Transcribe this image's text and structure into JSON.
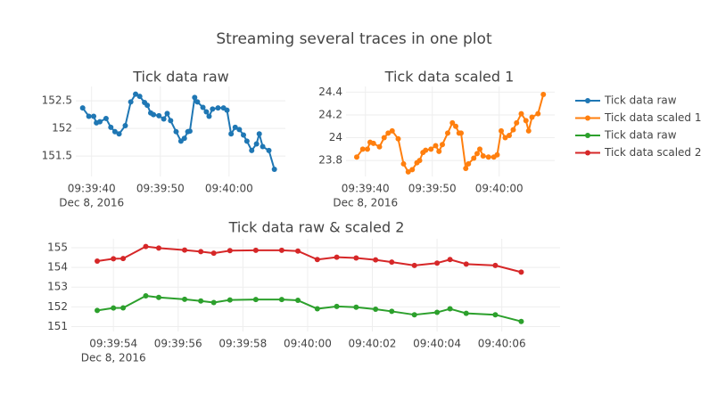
{
  "title": "Streaming several traces in one plot",
  "chart_data": [
    {
      "type": "line",
      "title": "Tick data raw",
      "x": [
        "2016-12-08T09:39:38.7",
        "2016-12-08T09:39:39.6",
        "2016-12-08T09:39:40.3",
        "2016-12-08T09:39:40.7",
        "2016-12-08T09:39:41.2",
        "2016-12-08T09:39:42.1",
        "2016-12-08T09:39:42.8",
        "2016-12-08T09:39:43.4",
        "2016-12-08T09:39:44.0",
        "2016-12-08T09:39:44.9",
        "2016-12-08T09:39:45.7",
        "2016-12-08T09:39:46.4",
        "2016-12-08T09:39:47.0",
        "2016-12-08T09:39:47.7",
        "2016-12-08T09:39:48.1",
        "2016-12-08T09:39:48.6",
        "2016-12-08T09:39:49.0",
        "2016-12-08T09:39:49.8",
        "2016-12-08T09:39:50.5",
        "2016-12-08T09:39:51.0",
        "2016-12-08T09:39:51.5",
        "2016-12-08T09:39:52.3",
        "2016-12-08T09:39:53.0",
        "2016-12-08T09:39:53.5",
        "2016-12-08T09:39:54.0",
        "2016-12-08T09:39:54.3",
        "2016-12-08T09:39:55.0",
        "2016-12-08T09:39:55.4",
        "2016-12-08T09:39:56.2",
        "2016-12-08T09:39:56.7",
        "2016-12-08T09:39:57.1",
        "2016-12-08T09:39:57.6",
        "2016-12-08T09:39:58.4",
        "2016-12-08T09:39:59.2",
        "2016-12-08T09:39:59.7",
        "2016-12-08T09:40:00.3",
        "2016-12-08T09:40:00.9",
        "2016-12-08T09:40:01.5",
        "2016-12-08T09:40:02.1",
        "2016-12-08T09:40:02.6",
        "2016-12-08T09:40:03.3",
        "2016-12-08T09:40:04.0",
        "2016-12-08T09:40:04.4",
        "2016-12-08T09:40:04.9",
        "2016-12-08T09:40:05.8",
        "2016-12-08T09:40:06.6"
      ],
      "series": [
        {
          "name": "Tick data raw",
          "color": "#1f77b4",
          "values": [
            152.37,
            152.22,
            152.22,
            152.1,
            152.12,
            152.18,
            152.02,
            151.94,
            151.9,
            152.05,
            152.48,
            152.62,
            152.58,
            152.47,
            152.42,
            152.28,
            152.25,
            152.23,
            152.17,
            152.27,
            152.14,
            151.94,
            151.77,
            151.82,
            151.94,
            151.95,
            152.56,
            152.48,
            152.38,
            152.3,
            152.22,
            152.35,
            152.37,
            152.37,
            152.33,
            151.9,
            152.02,
            151.98,
            151.88,
            151.77,
            151.6,
            151.72,
            151.9,
            151.67,
            151.6,
            151.26
          ]
        }
      ],
      "xlim": [
        "2016-12-08T09:39:37.7",
        "2016-12-08T09:40:08.2"
      ],
      "xticks": [
        {
          "value": "2016-12-08T09:39:40",
          "label": "09:39:40"
        },
        {
          "value": "2016-12-08T09:39:50",
          "label": "09:39:50"
        },
        {
          "value": "2016-12-08T09:40:00",
          "label": "09:40:00"
        }
      ],
      "x_date_label": "Dec 8, 2016",
      "ylim": [
        151.13,
        152.76
      ],
      "yticks": [
        151.5,
        152,
        152.5
      ],
      "grid": true
    },
    {
      "type": "line",
      "title": "Tick data scaled 1",
      "x": [
        "2016-12-08T09:39:38.7",
        "2016-12-08T09:39:39.6",
        "2016-12-08T09:39:40.3",
        "2016-12-08T09:39:40.7",
        "2016-12-08T09:39:41.2",
        "2016-12-08T09:39:42.1",
        "2016-12-08T09:39:42.8",
        "2016-12-08T09:39:43.4",
        "2016-12-08T09:39:44.0",
        "2016-12-08T09:39:44.9",
        "2016-12-08T09:39:45.7",
        "2016-12-08T09:39:46.4",
        "2016-12-08T09:39:47.0",
        "2016-12-08T09:39:47.7",
        "2016-12-08T09:39:48.1",
        "2016-12-08T09:39:48.6",
        "2016-12-08T09:39:49.0",
        "2016-12-08T09:39:49.8",
        "2016-12-08T09:39:50.5",
        "2016-12-08T09:39:51.0",
        "2016-12-08T09:39:51.5",
        "2016-12-08T09:39:52.3",
        "2016-12-08T09:39:53.0",
        "2016-12-08T09:39:53.5",
        "2016-12-08T09:39:54.0",
        "2016-12-08T09:39:54.3",
        "2016-12-08T09:39:55.0",
        "2016-12-08T09:39:55.4",
        "2016-12-08T09:39:56.2",
        "2016-12-08T09:39:56.7",
        "2016-12-08T09:39:57.1",
        "2016-12-08T09:39:57.6",
        "2016-12-08T09:39:58.4",
        "2016-12-08T09:39:59.2",
        "2016-12-08T09:39:59.7",
        "2016-12-08T09:40:00.3",
        "2016-12-08T09:40:00.9",
        "2016-12-08T09:40:01.5",
        "2016-12-08T09:40:02.1",
        "2016-12-08T09:40:02.6",
        "2016-12-08T09:40:03.3",
        "2016-12-08T09:40:04.0",
        "2016-12-08T09:40:04.4",
        "2016-12-08T09:40:04.9",
        "2016-12-08T09:40:05.8",
        "2016-12-08T09:40:06.6"
      ],
      "series": [
        {
          "name": "Tick data scaled 1",
          "color": "#ff7f0e",
          "values": [
            23.83,
            23.9,
            23.9,
            23.96,
            23.95,
            23.92,
            24,
            24.04,
            24.06,
            23.99,
            23.77,
            23.7,
            23.72,
            23.78,
            23.8,
            23.87,
            23.89,
            23.9,
            23.93,
            23.88,
            23.94,
            24.04,
            24.13,
            24.1,
            24.04,
            24.04,
            23.73,
            23.77,
            23.82,
            23.86,
            23.9,
            23.84,
            23.83,
            23.83,
            23.85,
            24.06,
            24,
            24.02,
            24.07,
            24.13,
            24.21,
            24.15,
            24.06,
            24.18,
            24.21,
            24.38
          ]
        }
      ],
      "xlim": [
        "2016-12-08T09:39:37.1",
        "2016-12-08T09:40:08.3"
      ],
      "xticks": [
        {
          "value": "2016-12-08T09:39:40",
          "label": "09:39:40"
        },
        {
          "value": "2016-12-08T09:39:50",
          "label": "09:39:50"
        },
        {
          "value": "2016-12-08T09:40:00",
          "label": "09:40:00"
        }
      ],
      "x_date_label": "Dec 8, 2016",
      "ylim": [
        23.66,
        24.45
      ],
      "yticks": [
        23.8,
        24,
        24.2,
        24.4
      ],
      "grid": true
    },
    {
      "type": "line",
      "title": "Tick data raw & scaled 2",
      "x": [
        "2016-12-08T09:39:53.5",
        "2016-12-08T09:39:54.0",
        "2016-12-08T09:39:54.3",
        "2016-12-08T09:39:55.0",
        "2016-12-08T09:39:55.4",
        "2016-12-08T09:39:56.2",
        "2016-12-08T09:39:56.7",
        "2016-12-08T09:39:57.1",
        "2016-12-08T09:39:57.6",
        "2016-12-08T09:39:58.4",
        "2016-12-08T09:39:59.2",
        "2016-12-08T09:39:59.7",
        "2016-12-08T09:40:00.3",
        "2016-12-08T09:40:00.9",
        "2016-12-08T09:40:01.5",
        "2016-12-08T09:40:02.1",
        "2016-12-08T09:40:02.6",
        "2016-12-08T09:40:03.3",
        "2016-12-08T09:40:04.0",
        "2016-12-08T09:40:04.4",
        "2016-12-08T09:40:04.9",
        "2016-12-08T09:40:05.8",
        "2016-12-08T09:40:06.6"
      ],
      "series": [
        {
          "name": "Tick data raw",
          "color": "#2ca02c",
          "values": [
            151.82,
            151.94,
            151.95,
            152.56,
            152.48,
            152.38,
            152.3,
            152.22,
            152.35,
            152.37,
            152.37,
            152.33,
            151.9,
            152.02,
            151.98,
            151.88,
            151.77,
            151.6,
            151.72,
            151.9,
            151.67,
            151.6,
            151.26
          ]
        },
        {
          "name": "Tick data scaled 2",
          "color": "#d62728",
          "values": [
            154.32,
            154.44,
            154.45,
            155.06,
            154.98,
            154.88,
            154.8,
            154.72,
            154.85,
            154.87,
            154.87,
            154.83,
            154.4,
            154.52,
            154.48,
            154.38,
            154.27,
            154.1,
            154.22,
            154.4,
            154.17,
            154.1,
            153.76
          ]
        }
      ],
      "xlim": [
        "2016-12-08T09:39:52.7",
        "2016-12-08T09:40:07.8"
      ],
      "xticks": [
        {
          "value": "2016-12-08T09:39:54",
          "label": "09:39:54"
        },
        {
          "value": "2016-12-08T09:39:56",
          "label": "09:39:56"
        },
        {
          "value": "2016-12-08T09:39:58",
          "label": "09:39:58"
        },
        {
          "value": "2016-12-08T09:40:00",
          "label": "09:40:00"
        },
        {
          "value": "2016-12-08T09:40:02",
          "label": "09:40:02"
        },
        {
          "value": "2016-12-08T09:40:04",
          "label": "09:40:04"
        },
        {
          "value": "2016-12-08T09:40:06",
          "label": "09:40:06"
        }
      ],
      "x_date_label": "Dec 8, 2016",
      "ylim": [
        150.75,
        155.45
      ],
      "yticks": [
        151,
        152,
        153,
        154,
        155
      ],
      "grid": true
    }
  ]
}
